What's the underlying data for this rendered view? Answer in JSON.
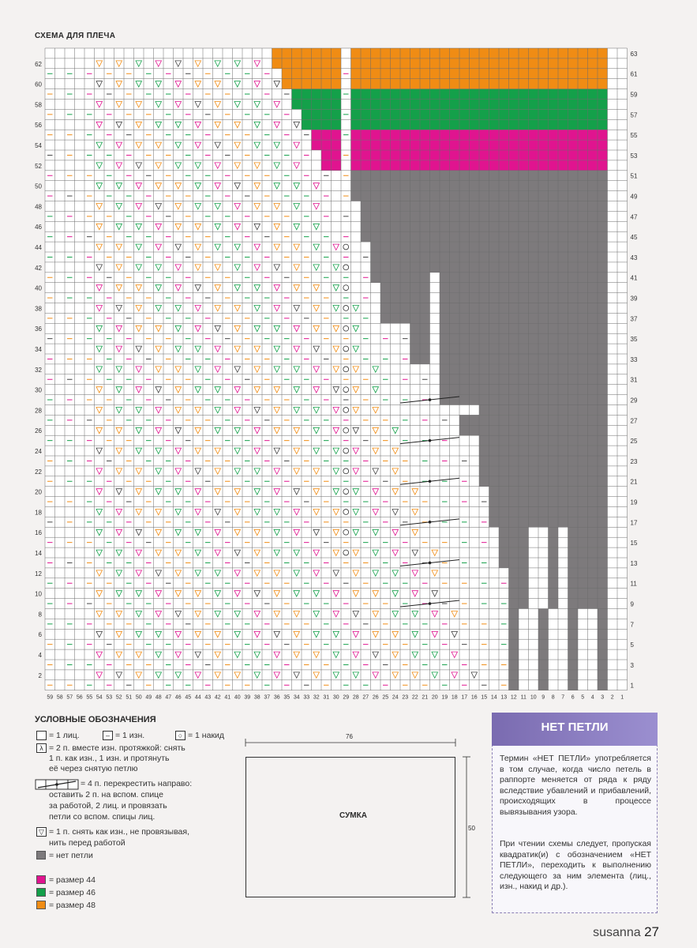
{
  "chart": {
    "title": "СХЕМА ДЛЯ ПЛЕЧА",
    "columns": 59,
    "rows": 63,
    "colors": {
      "size44": "#e0148f",
      "size46": "#14a04a",
      "size48": "#f08c14",
      "no_stitch": "#7d7a7c",
      "grid": "#6b6b6b"
    },
    "size_bands": [
      {
        "size": "48",
        "rows": [
          60,
          63
        ]
      },
      {
        "size": "46",
        "rows": [
          56,
          59
        ]
      },
      {
        "size": "44",
        "rows": [
          52,
          55
        ]
      }
    ]
  },
  "legend": {
    "title": "УСЛОВНЫЕ ОБОЗНАЧЕНИЯ",
    "knit": "= 1 лиц.",
    "purl": "= 1 изн.",
    "yo": "= 1 накид",
    "p2tog_l1": "= 2 п. вместе изн. протяжкой: снять",
    "p2tog_l2": "1 п. как изн., 1 изн. и протянуть",
    "p2tog_l3": "её через снятую петлю",
    "cross_l1": "= 4 п. перекрестить направо:",
    "cross_l2": "оставить 2 п. на вспом. спице",
    "cross_l3": "за работой, 2 лиц. и провязать",
    "cross_l4": "петли со вспом. спицы лиц.",
    "slip_l1": "= 1 п. снять как изн., не провязывая,",
    "slip_l2": "нить перед работой",
    "no_stitch": "= нет петли",
    "size44": "= размер 44",
    "size46": "= размер 46",
    "size48": "= размер 48"
  },
  "schematic": {
    "label": "СУМКА",
    "width": "76",
    "height": "50"
  },
  "info": {
    "title": "НЕТ ПЕТЛИ",
    "p1": "Термин «НЕТ ПЕТЛИ» употребляется в том случае, когда число петель в раппорте меняется от ряда к ряду вследствие убавлений и прибавлений, происходящих в процессе вывязывания узора.",
    "p2": "При чтении схемы следует, пропуская квадратик(и) с обозначением «НЕТ ПЕТЛИ», переходить к выполнению следующего за ним элемента (лиц., изн., накид и др.)."
  },
  "footer": {
    "brand": "susanna",
    "page": "27"
  }
}
